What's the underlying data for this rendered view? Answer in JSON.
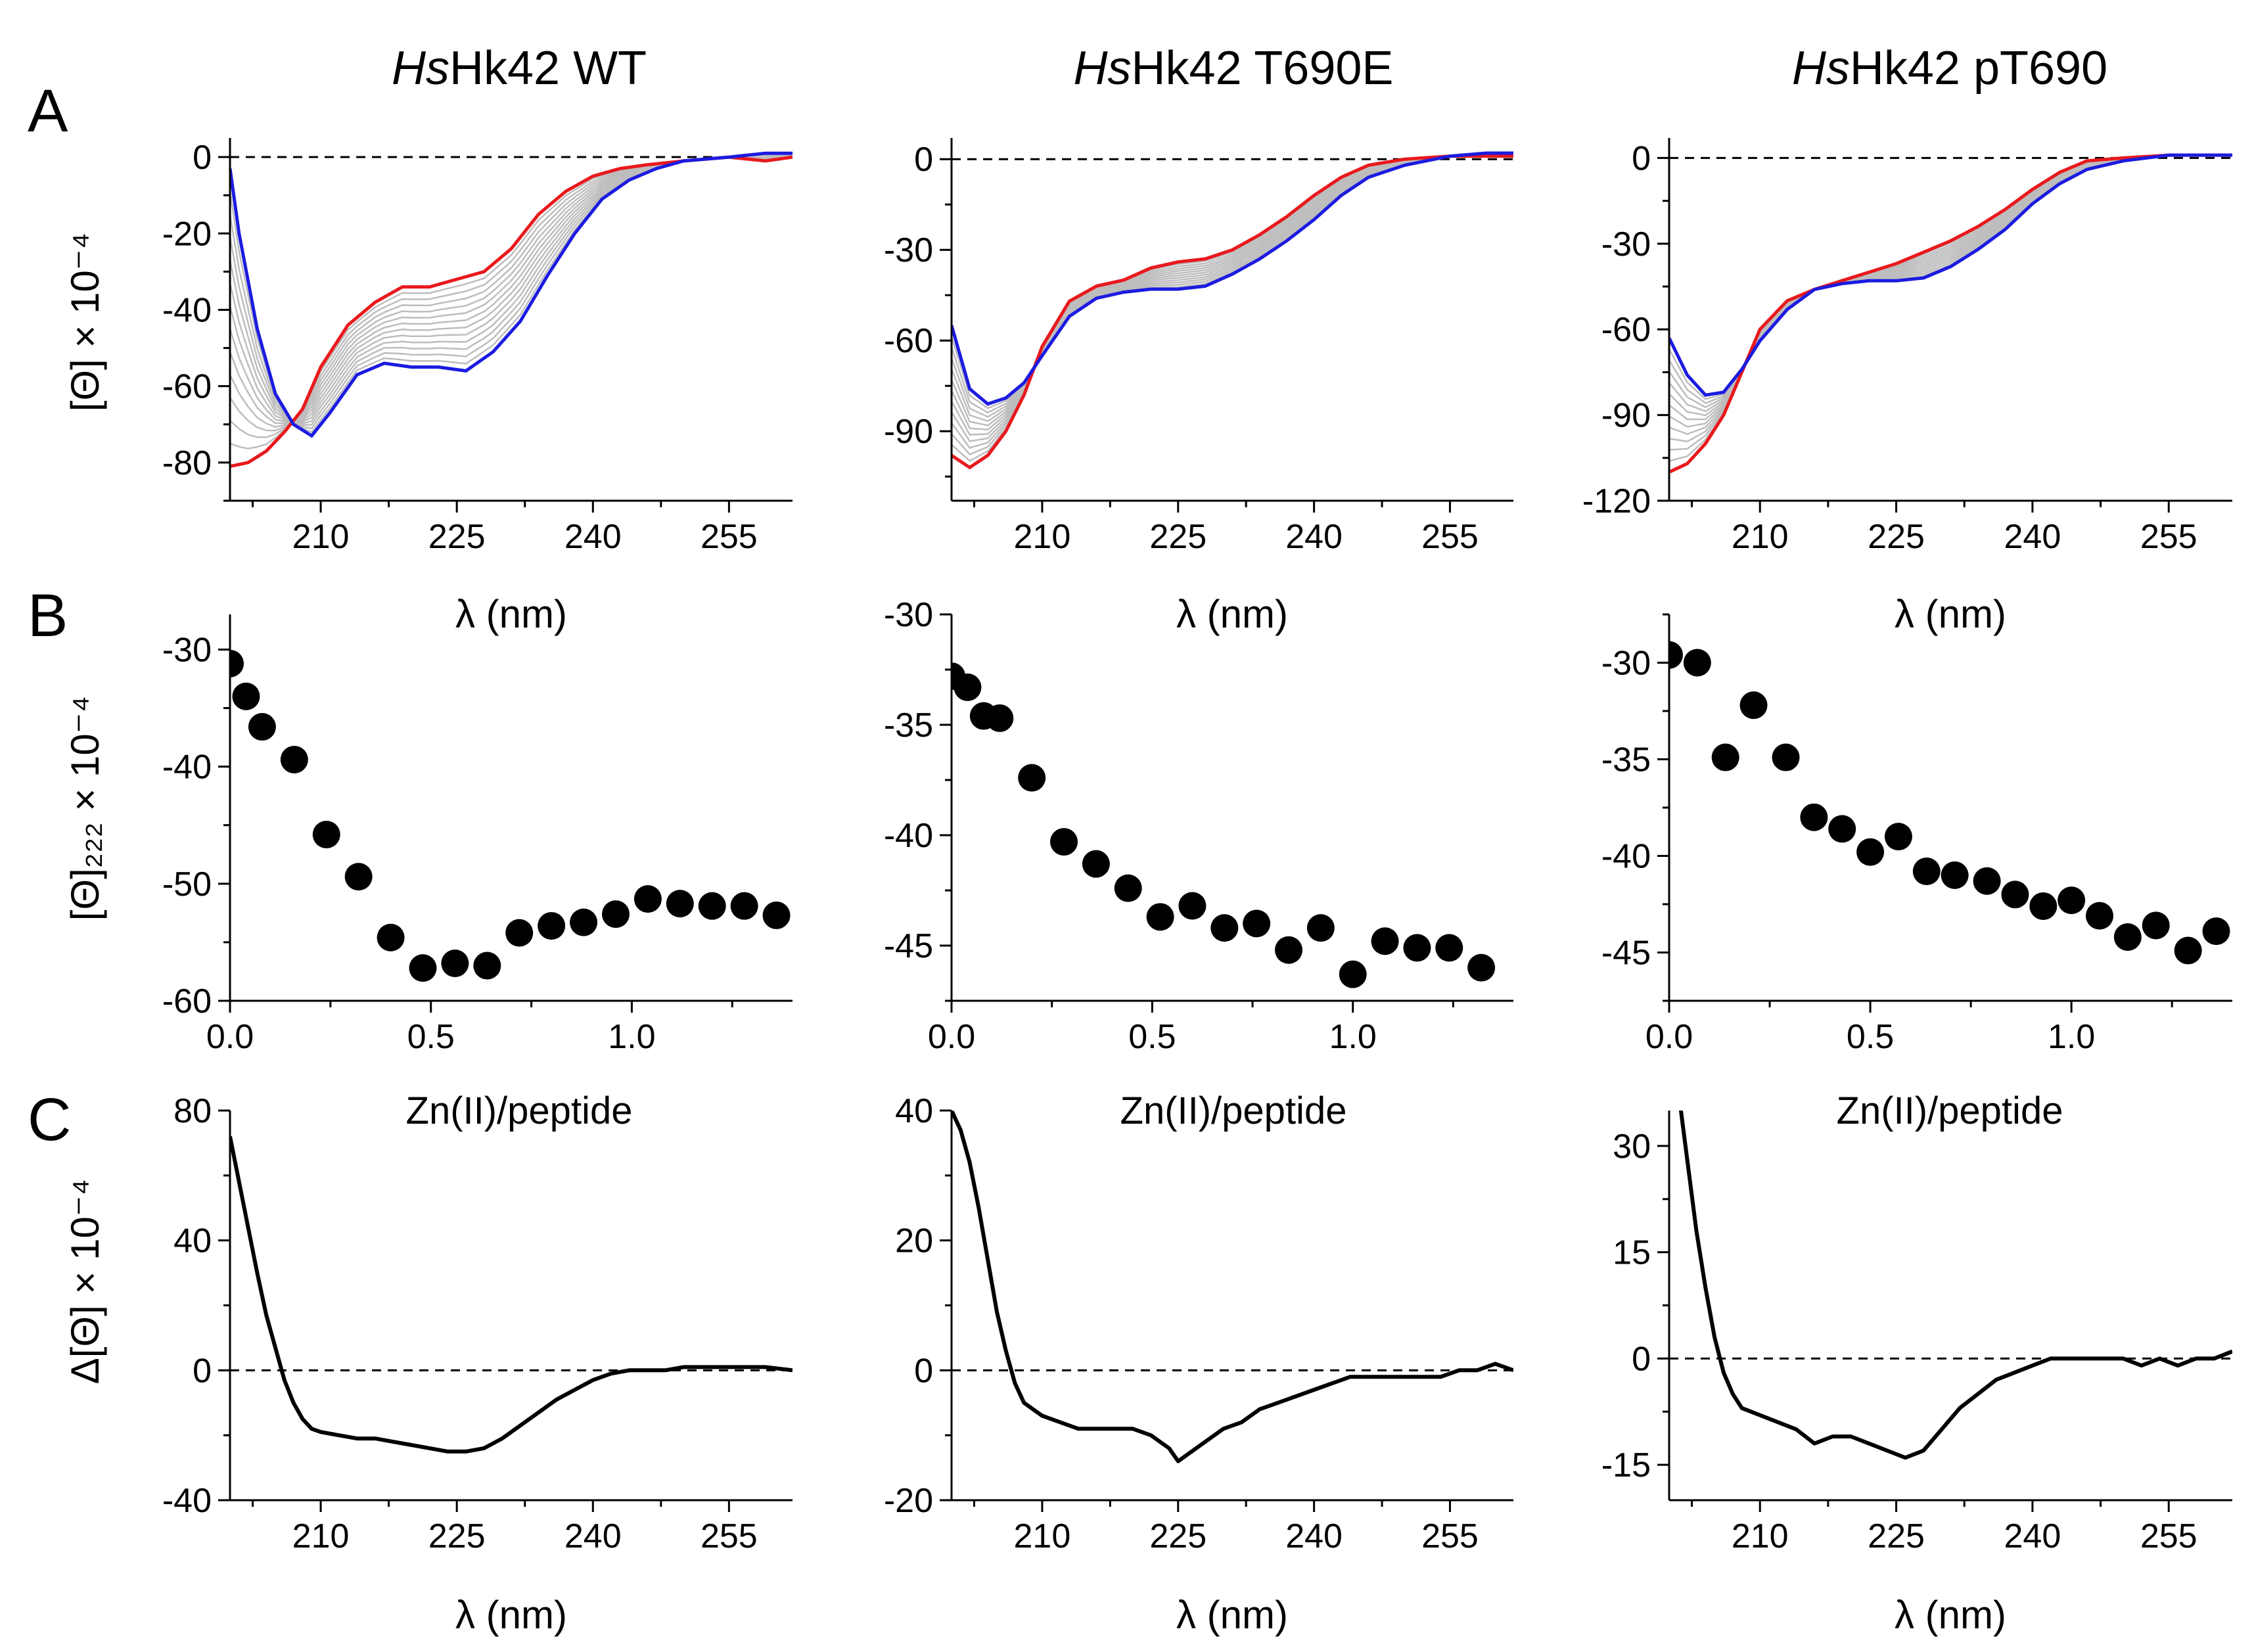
{
  "figure": {
    "panel_letters": [
      "A",
      "B",
      "C"
    ],
    "column_titles": [
      {
        "italic": "Hs",
        "rest": "Hk42 WT"
      },
      {
        "italic": "Hs",
        "rest": "Hk42 T690E"
      },
      {
        "italic": "Hs",
        "rest": "Hk42 pT690"
      }
    ],
    "row_a": {
      "ylabel": "[Θ] × 10⁻⁴",
      "xlabel": "λ (nm)"
    },
    "row_b": {
      "ylabel": "[Θ]₂₂₂ × 10⁻⁴"
    },
    "row_c": {
      "ylabel": "Δ[Θ] × 10⁻⁴",
      "xlabel": "λ (nm)",
      "annotation": "Zn(II)/peptide"
    },
    "colors": {
      "first": "#e8191c",
      "last": "#1b1be0",
      "intermediate": "#bdbdbd",
      "points": "#000000",
      "axis": "#000000"
    }
  },
  "chart_data": [
    {
      "id": "A1",
      "type": "line",
      "row": "A",
      "col": 0,
      "title": "HsHk42 WT",
      "xlabel": "λ (nm)",
      "ylabel": "[Θ] × 10⁻⁴",
      "xlim": [
        200,
        262
      ],
      "ylim": [
        -90,
        5
      ],
      "xticks": [
        210,
        225,
        240,
        255
      ],
      "xtick_labels": [
        "210",
        "225",
        "240",
        "255"
      ],
      "yticks": [
        0,
        -20,
        -40,
        -60,
        -80
      ],
      "ytick_labels": [
        "0",
        "-20",
        "-40",
        "-60",
        "-80"
      ],
      "zero_line": true,
      "first": {
        "x": [
          200,
          202,
          204,
          206,
          208,
          210,
          213,
          216,
          219,
          222,
          225,
          228,
          231,
          234,
          237,
          240,
          243,
          246,
          250,
          255,
          259,
          262
        ],
        "y": [
          -81,
          -80,
          -77,
          -72,
          -66,
          -55,
          -44,
          -38,
          -34,
          -34,
          -32,
          -30,
          -24,
          -15,
          -9,
          -5,
          -3,
          -2,
          -1,
          0,
          -1,
          0
        ]
      },
      "last": {
        "x": [
          200,
          201,
          203,
          205,
          207,
          209,
          211,
          214,
          217,
          220,
          223,
          226,
          229,
          232,
          235,
          238,
          241,
          244,
          247,
          250,
          255,
          259,
          262
        ],
        "y": [
          -3,
          -20,
          -45,
          -62,
          -70,
          -73,
          -67,
          -57,
          -54,
          -55,
          -55,
          -56,
          -51,
          -43,
          -31,
          -20,
          -11,
          -6,
          -3,
          -1,
          0,
          1,
          1
        ]
      },
      "intermediates": 12
    },
    {
      "id": "A2",
      "type": "line",
      "row": "A",
      "col": 1,
      "title": "HsHk42 T690E",
      "xlabel": "λ (nm)",
      "ylabel": "",
      "xlim": [
        200,
        262
      ],
      "ylim": [
        -113,
        7
      ],
      "xticks": [
        210,
        225,
        240,
        255
      ],
      "xtick_labels": [
        "210",
        "225",
        "240",
        "255"
      ],
      "yticks": [
        0,
        -30,
        -60,
        -90
      ],
      "ytick_labels": [
        "0",
        "-30",
        "-60",
        "-90"
      ],
      "zero_line": true,
      "first": {
        "x": [
          200,
          202,
          204,
          206,
          208,
          210,
          213,
          216,
          219,
          222,
          225,
          228,
          231,
          234,
          237,
          240,
          243,
          246,
          250,
          255,
          259,
          262
        ],
        "y": [
          -98,
          -102,
          -98,
          -90,
          -78,
          -62,
          -47,
          -42,
          -40,
          -36,
          -34,
          -33,
          -30,
          -25,
          -19,
          -12,
          -6,
          -2,
          0,
          1,
          1,
          1
        ]
      },
      "last": {
        "x": [
          200,
          202,
          204,
          206,
          208,
          210,
          213,
          216,
          219,
          222,
          225,
          228,
          231,
          234,
          237,
          240,
          243,
          246,
          250,
          255,
          259,
          262
        ],
        "y": [
          -55,
          -76,
          -81,
          -79,
          -74,
          -65,
          -52,
          -46,
          -44,
          -43,
          -43,
          -42,
          -38,
          -33,
          -27,
          -20,
          -12,
          -6,
          -2,
          1,
          2,
          2
        ]
      },
      "intermediates": 11
    },
    {
      "id": "A3",
      "type": "line",
      "row": "A",
      "col": 2,
      "title": "HsHk42 pT690",
      "xlabel": "λ (nm)",
      "ylabel": "",
      "xlim": [
        200,
        262
      ],
      "ylim": [
        -120,
        7
      ],
      "xticks": [
        210,
        225,
        240,
        255
      ],
      "xtick_labels": [
        "210",
        "225",
        "240",
        "255"
      ],
      "yticks": [
        0,
        -30,
        -60,
        -90,
        -120
      ],
      "ytick_labels": [
        "0",
        "-30",
        "-60",
        "-90",
        "-120"
      ],
      "zero_line": true,
      "first": {
        "x": [
          200,
          202,
          204,
          206,
          208,
          210,
          213,
          216,
          219,
          222,
          225,
          228,
          231,
          234,
          237,
          240,
          243,
          246,
          250,
          255,
          259,
          262
        ],
        "y": [
          -110,
          -107,
          -100,
          -90,
          -75,
          -60,
          -50,
          -46,
          -43,
          -40,
          -37,
          -33,
          -29,
          -24,
          -18,
          -11,
          -5,
          -1,
          0,
          1,
          1,
          1
        ]
      },
      "last": {
        "x": [
          200,
          202,
          204,
          206,
          208,
          210,
          213,
          216,
          219,
          222,
          225,
          228,
          231,
          234,
          237,
          240,
          243,
          246,
          250,
          255,
          259,
          262
        ],
        "y": [
          -63,
          -76,
          -83,
          -82,
          -74,
          -64,
          -53,
          -46,
          -44,
          -43,
          -43,
          -42,
          -38,
          -32,
          -25,
          -16,
          -9,
          -4,
          -1,
          1,
          1,
          1
        ]
      },
      "intermediates": 11
    },
    {
      "id": "B1",
      "type": "scatter",
      "row": "B",
      "col": 0,
      "xlabel": "",
      "ylabel": "[Θ]₂₂₂ × 10⁻⁴",
      "xlim": [
        0,
        1.4
      ],
      "ylim": [
        -60,
        -27
      ],
      "xticks": [
        0,
        0.5,
        1.0
      ],
      "xtick_labels": [
        "0.0",
        "0.5",
        "1.0"
      ],
      "yticks": [
        -30,
        -40,
        -50,
        -60
      ],
      "ytick_labels": [
        "-30",
        "-40",
        "-50",
        "-60"
      ],
      "x": [
        0,
        0.04,
        0.08,
        0.16,
        0.24,
        0.32,
        0.4,
        0.48,
        0.56,
        0.64,
        0.72,
        0.8,
        0.88,
        0.96,
        1.04,
        1.12,
        1.2,
        1.28,
        1.36
      ],
      "y": [
        -31.2,
        -34.0,
        -36.6,
        -39.4,
        -45.8,
        -49.4,
        -54.6,
        -57.2,
        -56.8,
        -57.0,
        -54.2,
        -53.6,
        -53.3,
        -52.6,
        -51.3,
        -51.7,
        -51.9,
        -51.9,
        -52.7
      ]
    },
    {
      "id": "B2",
      "type": "scatter",
      "row": "B",
      "col": 1,
      "xlabel": "",
      "ylabel": "",
      "xlim": [
        0,
        1.4
      ],
      "ylim": [
        -47.5,
        -30
      ],
      "xticks": [
        0,
        0.5,
        1.0
      ],
      "xtick_labels": [
        "0.0",
        "0.5",
        "1.0"
      ],
      "yticks": [
        -30,
        -35,
        -40,
        -45
      ],
      "ytick_labels": [
        "-30",
        "-35",
        "-40",
        "-45"
      ],
      "x": [
        0,
        0.04,
        0.08,
        0.12,
        0.2,
        0.28,
        0.36,
        0.44,
        0.52,
        0.6,
        0.68,
        0.76,
        0.84,
        0.92,
        1.0,
        1.08,
        1.16,
        1.24,
        1.32
      ],
      "y": [
        -32.8,
        -33.3,
        -34.6,
        -34.7,
        -37.4,
        -40.3,
        -41.3,
        -42.4,
        -43.7,
        -43.2,
        -44.2,
        -44.0,
        -45.2,
        -44.2,
        -46.3,
        -44.8,
        -45.1,
        -45.1,
        -46.0
      ]
    },
    {
      "id": "B3",
      "type": "scatter",
      "row": "B",
      "col": 2,
      "xlabel": "",
      "ylabel": "",
      "xlim": [
        0,
        1.4
      ],
      "ylim": [
        -47.5,
        -27.5
      ],
      "xticks": [
        0,
        0.5,
        1.0
      ],
      "xtick_labels": [
        "0.0",
        "0.5",
        "1.0"
      ],
      "yticks": [
        -30,
        -35,
        -40,
        -45
      ],
      "ytick_labels": [
        "-30",
        "-35",
        "-40",
        "-45"
      ],
      "x": [
        0,
        0.07,
        0.14,
        0.21,
        0.29,
        0.36,
        0.43,
        0.5,
        0.57,
        0.64,
        0.71,
        0.79,
        0.86,
        0.93,
        1.0,
        1.07,
        1.14,
        1.21,
        1.29,
        1.36
      ],
      "y": [
        -29.6,
        -30.0,
        -34.9,
        -32.2,
        -34.9,
        -38.0,
        -38.6,
        -39.8,
        -39.0,
        -40.8,
        -41.0,
        -41.3,
        -42.0,
        -42.6,
        -42.3,
        -43.1,
        -44.2,
        -43.6,
        -44.9,
        -43.9
      ]
    },
    {
      "id": "C1",
      "type": "line",
      "row": "C",
      "col": 0,
      "annotation": "Zn(II)/peptide",
      "xlabel": "λ (nm)",
      "ylabel": "Δ[Θ] × 10⁻⁴",
      "xlim": [
        200,
        262
      ],
      "ylim": [
        -40,
        80
      ],
      "xticks": [
        210,
        225,
        240,
        255
      ],
      "xtick_labels": [
        "210",
        "225",
        "240",
        "255"
      ],
      "yticks": [
        80,
        40,
        0,
        -40
      ],
      "ytick_labels": [
        "80",
        "40",
        "0",
        "-40"
      ],
      "zero_line": true,
      "x": [
        200,
        201,
        202,
        203,
        204,
        205,
        206,
        207,
        208,
        209,
        210,
        212,
        214,
        216,
        218,
        220,
        222,
        224,
        226,
        228,
        230,
        232,
        234,
        236,
        238,
        240,
        242,
        244,
        246,
        248,
        250,
        253,
        256,
        259,
        262
      ],
      "y": [
        72,
        58,
        44,
        30,
        17,
        7,
        -3,
        -10,
        -15,
        -18,
        -19,
        -20,
        -21,
        -21,
        -22,
        -23,
        -24,
        -25,
        -25,
        -24,
        -21,
        -17,
        -13,
        -9,
        -6,
        -3,
        -1,
        0,
        0,
        0,
        1,
        1,
        1,
        1,
        0
      ]
    },
    {
      "id": "C2",
      "type": "line",
      "row": "C",
      "col": 1,
      "annotation": "Zn(II)/peptide",
      "xlabel": "λ (nm)",
      "ylabel": "",
      "xlim": [
        200,
        262
      ],
      "ylim": [
        -20,
        40
      ],
      "xticks": [
        210,
        225,
        240,
        255
      ],
      "xtick_labels": [
        "210",
        "225",
        "240",
        "255"
      ],
      "yticks": [
        40,
        20,
        0,
        -20
      ],
      "ytick_labels": [
        "40",
        "20",
        "0",
        "-20"
      ],
      "zero_line": true,
      "x": [
        200,
        201,
        202,
        203,
        204,
        205,
        206,
        207,
        208,
        210,
        212,
        214,
        216,
        218,
        220,
        222,
        224,
        225,
        226,
        228,
        230,
        232,
        234,
        236,
        238,
        240,
        242,
        244,
        246,
        248,
        250,
        252,
        254,
        256,
        258,
        260,
        262
      ],
      "y": [
        40,
        37,
        32,
        25,
        17,
        9,
        3,
        -2,
        -5,
        -7,
        -8,
        -9,
        -9,
        -9,
        -9,
        -10,
        -12,
        -14,
        -13,
        -11,
        -9,
        -8,
        -6,
        -5,
        -4,
        -3,
        -2,
        -1,
        -1,
        -1,
        -1,
        -1,
        -1,
        0,
        0,
        1,
        0
      ]
    },
    {
      "id": "C3",
      "type": "line",
      "row": "C",
      "col": 2,
      "annotation": "Zn(II)/peptide",
      "xlabel": "λ (nm)",
      "ylabel": "",
      "xlim": [
        200,
        262
      ],
      "ylim": [
        -20,
        35
      ],
      "xticks": [
        210,
        225,
        240,
        255
      ],
      "xtick_labels": [
        "210",
        "225",
        "240",
        "255"
      ],
      "yticks": [
        30,
        15,
        0,
        -15
      ],
      "ytick_labels": [
        "30",
        "15",
        "0",
        "-15"
      ],
      "zero_line": true,
      "x": [
        201,
        202,
        203,
        204,
        205,
        206,
        207,
        208,
        210,
        212,
        214,
        216,
        218,
        220,
        222,
        224,
        226,
        228,
        230,
        232,
        234,
        236,
        238,
        240,
        242,
        244,
        246,
        248,
        250,
        252,
        254,
        256,
        258,
        260,
        262
      ],
      "y": [
        38,
        28,
        18,
        10,
        3,
        -2,
        -5,
        -7,
        -8,
        -9,
        -10,
        -12,
        -11,
        -11,
        -12,
        -13,
        -14,
        -13,
        -10,
        -7,
        -5,
        -3,
        -2,
        -1,
        0,
        0,
        0,
        0,
        0,
        -1,
        0,
        -1,
        0,
        0,
        1
      ]
    }
  ]
}
